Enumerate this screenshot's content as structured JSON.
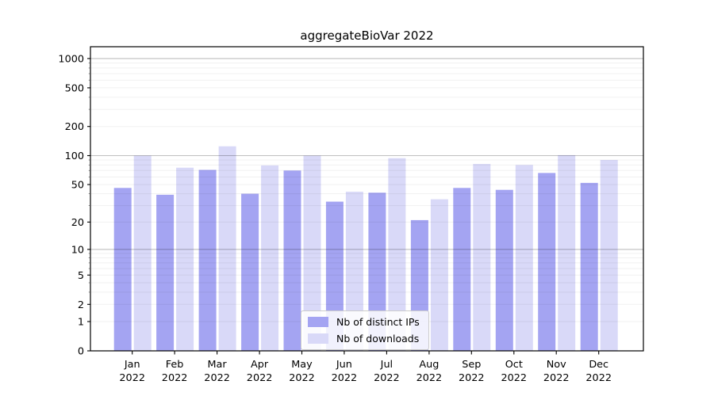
{
  "title": "aggregateBioVar 2022",
  "chart_data": {
    "type": "bar",
    "title": "aggregateBioVar 2022",
    "categories": [
      "Jan",
      "Feb",
      "Mar",
      "Apr",
      "May",
      "Jun",
      "Jul",
      "Aug",
      "Sep",
      "Oct",
      "Nov",
      "Dec"
    ],
    "category_year": "2022",
    "series": [
      {
        "name": "Nb of distinct IPs",
        "color": "#a4a4f2",
        "values": [
          46,
          39,
          71,
          40,
          70,
          33,
          41,
          21,
          46,
          44,
          66,
          52
        ]
      },
      {
        "name": "Nb of downloads",
        "color": "#d9d9f8",
        "values": [
          100,
          75,
          125,
          79,
          100,
          42,
          94,
          35,
          82,
          80,
          101,
          90
        ]
      }
    ],
    "yscale": "log10(1+y)",
    "y_ticks": [
      0,
      1,
      2,
      5,
      10,
      20,
      50,
      100,
      200,
      500,
      1000
    ],
    "ylim": [
      0,
      1300
    ],
    "grid": true,
    "legend_position": "bottom-center"
  },
  "colors": {
    "axis": "#000000",
    "major_grid": "rgba(0,0,0,0.25)",
    "minor_grid": "rgba(0,0,0,0.06)",
    "tick_label": "#000000"
  }
}
